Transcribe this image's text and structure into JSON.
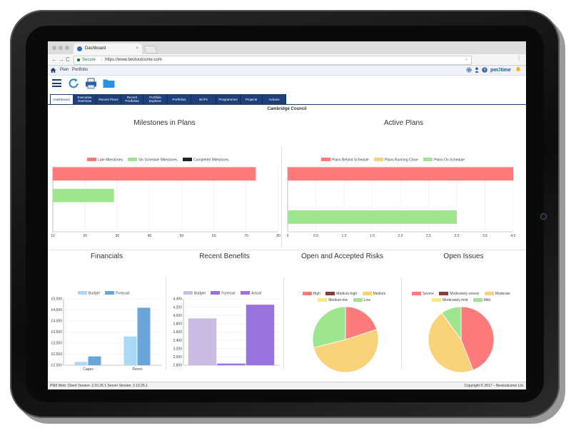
{
  "browser": {
    "tab_title": "Dashboard",
    "tab_close": "×",
    "secure_label": "Secure",
    "url": "https://www.bestoutcome.com",
    "back_glyph": "←",
    "forward_glyph": "→",
    "reload_glyph": "C",
    "star_glyph": "☆",
    "menu_glyph": "⋮"
  },
  "app_header": {
    "breadcrumb": [
      "Plan",
      "Portfolio"
    ],
    "brand_prefix": "pm",
    "brand_digit": "3",
    "brand_suffix": "time"
  },
  "toolbar_icons": [
    "menu-icon",
    "refresh-icon",
    "print-icon",
    "folder-icon"
  ],
  "tabs": [
    {
      "label": "Dashboard",
      "active": true
    },
    {
      "label": "Executive Overview",
      "active": false
    },
    {
      "label": "Recent Plans",
      "active": false
    },
    {
      "label": "Recent Portfolios",
      "active": false
    },
    {
      "label": "Portfolio Explorer",
      "active": false
    },
    {
      "label": "Portfolios",
      "active": false
    },
    {
      "label": "BCPs",
      "active": false
    },
    {
      "label": "Programmes",
      "active": false
    },
    {
      "label": "Projects",
      "active": false
    },
    {
      "label": "Actions",
      "active": false
    }
  ],
  "page_title": "Cambridge Council",
  "colors": {
    "red": "#ff7b7b",
    "green": "#9ee58f",
    "black": "#222222",
    "amber": "#f9d27a",
    "light_blue": "#a9d9f7",
    "blue": "#6aa5da",
    "lavender": "#cbbde2",
    "purple": "#9a72dd",
    "dark_red": "#8b3a3a",
    "yellow": "#f5ec73",
    "navy": "#1e3f7a"
  },
  "chart_data": [
    {
      "id": "milestones",
      "type": "bar",
      "orientation": "horizontal",
      "title": "Milestones in Plans",
      "series": [
        {
          "name": "Late Milestones",
          "color": "#ff7b7b",
          "value": 73
        },
        {
          "name": "On Schedule Milestones",
          "color": "#9ee58f",
          "value": 29
        },
        {
          "name": "Completed Milestones",
          "color": "#222222",
          "value": 0
        }
      ],
      "xlim": [
        10,
        80
      ],
      "xticks": [
        "10",
        "20",
        "30",
        "40",
        "50",
        "60",
        "70",
        "80"
      ],
      "legend": "top"
    },
    {
      "id": "active",
      "type": "bar",
      "orientation": "horizontal",
      "title": "Active Plans",
      "series": [
        {
          "name": "Plans Behind Schedule",
          "color": "#ff7b7b",
          "value": 4
        },
        {
          "name": "Plans Running Close",
          "color": "#f9d27a",
          "value": 0
        },
        {
          "name": "Plans On Schedule",
          "color": "#9ee58f",
          "value": 3
        }
      ],
      "xlim": [
        0,
        4
      ],
      "xticks": [
        "0",
        "0.5",
        "1.0",
        "1.5",
        "2.0",
        "2.5",
        "3.0",
        "3.5",
        "4.0"
      ],
      "legend": "top"
    },
    {
      "id": "financials",
      "type": "bar",
      "title": "Financials",
      "categories": [
        "Capex",
        "Revex"
      ],
      "series": [
        {
          "name": "Budget",
          "color": "#a9d9f7",
          "values": [
            2150,
            3300
          ]
        },
        {
          "name": "Forecast",
          "color": "#6aa5da",
          "values": [
            2400,
            4600
          ]
        }
      ],
      "ylim": [
        2000,
        5000
      ],
      "yticks": [
        "£2,000",
        "£2,500",
        "£3,000",
        "£3,500",
        "£4,000",
        "£4,500",
        "£5,000"
      ],
      "legend": "top"
    },
    {
      "id": "benefits",
      "type": "bar",
      "title": "Recent Benefits",
      "categories": [
        ""
      ],
      "series": [
        {
          "name": "Budget",
          "color": "#cbbde2",
          "values": [
            3930
          ]
        },
        {
          "name": "Forecast",
          "color": "#9a72dd",
          "values": [
            2840
          ]
        },
        {
          "name": "Actual",
          "color": "#9a72dd",
          "values": [
            4260
          ]
        }
      ],
      "ylim": [
        2800,
        4400
      ],
      "yticks": [
        "2,800",
        "3,000",
        "3,200",
        "3,400",
        "3,600",
        "3,800",
        "4,000",
        "4,200",
        "4,400"
      ],
      "legend": "top"
    },
    {
      "id": "risks",
      "type": "pie",
      "title": "Open and Accepted Risks",
      "slices": [
        {
          "name": "High",
          "color": "#ff7b7b",
          "value": 20
        },
        {
          "name": "Medium-high",
          "color": "#8b3a3a",
          "value": 0
        },
        {
          "name": "Medium",
          "color": "#f9d27a",
          "value": 51
        },
        {
          "name": "Medium-low",
          "color": "#f5ec73",
          "value": 0
        },
        {
          "name": "Low",
          "color": "#9ee58f",
          "value": 29
        }
      ],
      "legend": "top"
    },
    {
      "id": "issues",
      "type": "pie",
      "title": "Open Issues",
      "slices": [
        {
          "name": "Severe",
          "color": "#ff7b7b",
          "value": 44
        },
        {
          "name": "Moderately severe",
          "color": "#8b3a3a",
          "value": 0
        },
        {
          "name": "Moderate",
          "color": "#f9d27a",
          "value": 46
        },
        {
          "name": "Moderately mild",
          "color": "#f5ec73",
          "value": 0
        },
        {
          "name": "Mild",
          "color": "#9ee58f",
          "value": 10
        }
      ],
      "legend": "top"
    }
  ],
  "status_bar": {
    "left": "PM3 Web: Client Version: 2.10.25.1 Server Version: 2.10.25.1",
    "right": "Copyright © 2017 – Bestoutcome Ltd."
  }
}
